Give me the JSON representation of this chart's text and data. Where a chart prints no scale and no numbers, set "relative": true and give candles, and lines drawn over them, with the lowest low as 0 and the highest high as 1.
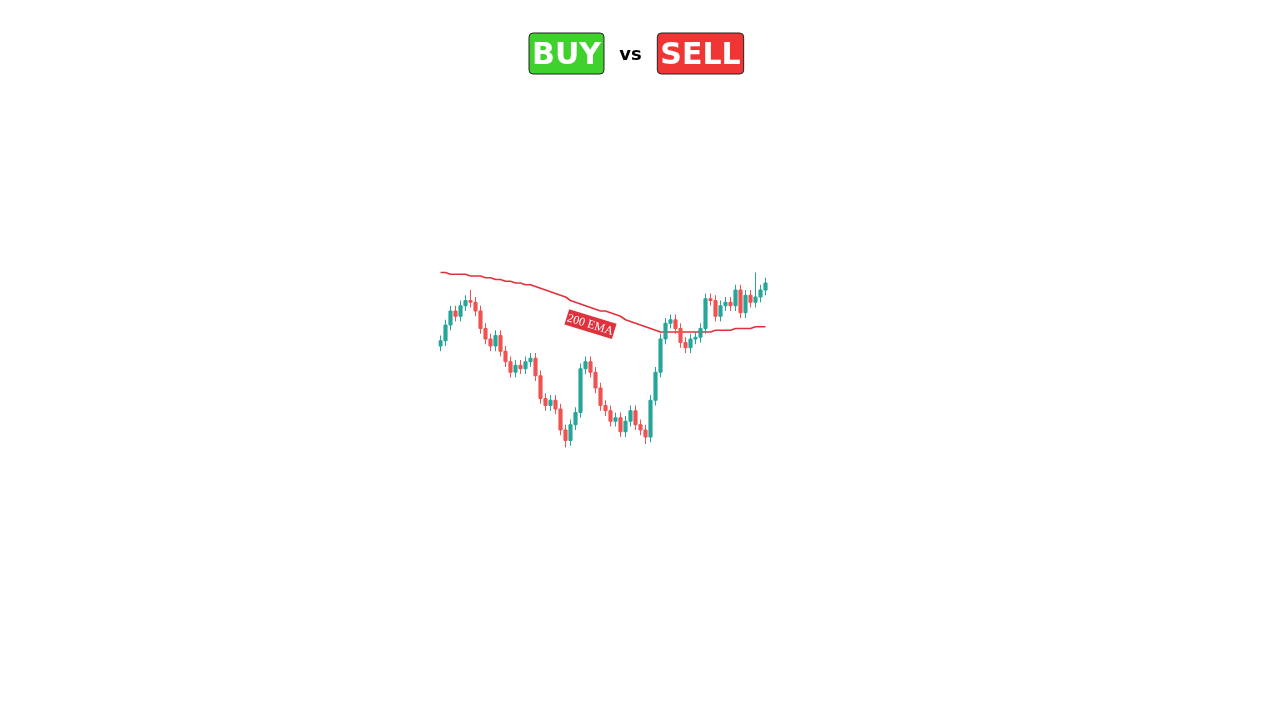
{
  "chart_data": {
    "type": "candlestick",
    "title": "BUY vs SELL",
    "relative": true,
    "categories": [
      null,
      null,
      null,
      null,
      null,
      null,
      null,
      null,
      null,
      null,
      null,
      null,
      null,
      null,
      null,
      null,
      null,
      null,
      null,
      null,
      null,
      null,
      null,
      null,
      null,
      null,
      null,
      null,
      null,
      null,
      null,
      null,
      null,
      null,
      null,
      null,
      null,
      null,
      null,
      null,
      null,
      null,
      null,
      null,
      null,
      null,
      null,
      null,
      null,
      null,
      null,
      null,
      null,
      null,
      null,
      null,
      null,
      null,
      null,
      null,
      null,
      null,
      null,
      null,
      null,
      null
    ],
    "ohlc": [
      [
        0.58,
        0.64,
        0.55,
        0.61
      ],
      [
        0.61,
        0.73,
        0.58,
        0.7
      ],
      [
        0.7,
        0.81,
        0.67,
        0.78
      ],
      [
        0.78,
        0.81,
        0.72,
        0.75
      ],
      [
        0.75,
        0.84,
        0.72,
        0.81
      ],
      [
        0.81,
        0.87,
        0.78,
        0.84
      ],
      [
        0.84,
        0.9,
        0.8,
        0.83
      ],
      [
        0.83,
        0.86,
        0.75,
        0.78
      ],
      [
        0.78,
        0.81,
        0.65,
        0.68
      ],
      [
        0.68,
        0.71,
        0.59,
        0.62
      ],
      [
        0.62,
        0.65,
        0.55,
        0.58
      ],
      [
        0.58,
        0.67,
        0.55,
        0.64
      ],
      [
        0.64,
        0.67,
        0.52,
        0.55
      ],
      [
        0.55,
        0.58,
        0.46,
        0.49
      ],
      [
        0.49,
        0.52,
        0.4,
        0.43
      ],
      [
        0.43,
        0.5,
        0.4,
        0.47
      ],
      [
        0.47,
        0.5,
        0.42,
        0.45
      ],
      [
        0.45,
        0.52,
        0.42,
        0.49
      ],
      [
        0.49,
        0.54,
        0.46,
        0.51
      ],
      [
        0.51,
        0.54,
        0.38,
        0.41
      ],
      [
        0.41,
        0.44,
        0.25,
        0.28
      ],
      [
        0.28,
        0.31,
        0.21,
        0.24
      ],
      [
        0.24,
        0.3,
        0.21,
        0.27
      ],
      [
        0.27,
        0.3,
        0.19,
        0.22
      ],
      [
        0.22,
        0.25,
        0.07,
        0.1
      ],
      [
        0.1,
        0.13,
        0.0,
        0.04
      ],
      [
        0.04,
        0.16,
        0.01,
        0.13
      ],
      [
        0.13,
        0.23,
        0.1,
        0.2
      ],
      [
        0.2,
        0.48,
        0.17,
        0.45
      ],
      [
        0.45,
        0.52,
        0.42,
        0.49
      ],
      [
        0.49,
        0.52,
        0.4,
        0.43
      ],
      [
        0.43,
        0.46,
        0.31,
        0.34
      ],
      [
        0.34,
        0.37,
        0.21,
        0.24
      ],
      [
        0.24,
        0.27,
        0.18,
        0.21
      ],
      [
        0.21,
        0.24,
        0.12,
        0.15
      ],
      [
        0.15,
        0.2,
        0.12,
        0.17
      ],
      [
        0.17,
        0.2,
        0.06,
        0.09
      ],
      [
        0.09,
        0.18,
        0.06,
        0.15
      ],
      [
        0.15,
        0.24,
        0.12,
        0.21
      ],
      [
        0.21,
        0.24,
        0.1,
        0.13
      ],
      [
        0.13,
        0.16,
        0.07,
        0.1
      ],
      [
        0.1,
        0.13,
        0.02,
        0.06
      ],
      [
        0.06,
        0.3,
        0.03,
        0.27
      ],
      [
        0.27,
        0.46,
        0.24,
        0.43
      ],
      [
        0.43,
        0.65,
        0.4,
        0.62
      ],
      [
        0.62,
        0.74,
        0.59,
        0.71
      ],
      [
        0.71,
        0.76,
        0.68,
        0.73
      ],
      [
        0.73,
        0.76,
        0.65,
        0.68
      ],
      [
        0.68,
        0.71,
        0.57,
        0.6
      ],
      [
        0.6,
        0.63,
        0.54,
        0.57
      ],
      [
        0.57,
        0.65,
        0.54,
        0.62
      ],
      [
        0.62,
        0.66,
        0.59,
        0.63
      ],
      [
        0.63,
        0.71,
        0.6,
        0.68
      ],
      [
        0.68,
        0.88,
        0.65,
        0.85
      ],
      [
        0.85,
        0.88,
        0.81,
        0.84
      ],
      [
        0.84,
        0.87,
        0.72,
        0.75
      ],
      [
        0.75,
        0.84,
        0.72,
        0.81
      ],
      [
        0.81,
        0.86,
        0.78,
        0.83
      ],
      [
        0.83,
        0.86,
        0.78,
        0.81
      ],
      [
        0.81,
        0.93,
        0.78,
        0.9
      ],
      [
        0.9,
        0.93,
        0.74,
        0.77
      ],
      [
        0.77,
        0.9,
        0.74,
        0.87
      ],
      [
        0.87,
        0.9,
        0.8,
        0.83
      ],
      [
        0.83,
        1.0,
        0.8,
        0.86
      ],
      [
        0.86,
        0.93,
        0.83,
        0.9
      ],
      [
        0.9,
        0.97,
        0.87,
        0.94
      ]
    ],
    "series": [
      {
        "type": "line",
        "name": "200 EMA",
        "color": "#e0323c",
        "values": [
          1.0,
          1.0,
          0.99,
          0.99,
          0.99,
          0.99,
          0.98,
          0.98,
          0.98,
          0.97,
          0.97,
          0.96,
          0.96,
          0.95,
          0.95,
          0.94,
          0.94,
          0.93,
          0.93,
          0.92,
          0.91,
          0.9,
          0.89,
          0.88,
          0.87,
          0.86,
          0.84,
          0.83,
          0.82,
          0.81,
          0.8,
          0.79,
          0.78,
          0.78,
          0.77,
          0.76,
          0.75,
          0.73,
          0.72,
          0.71,
          0.7,
          0.69,
          0.68,
          0.67,
          0.66,
          0.66,
          0.66,
          0.66,
          0.66,
          0.66,
          0.66,
          0.66,
          0.66,
          0.66,
          0.66,
          0.67,
          0.67,
          0.67,
          0.67,
          0.68,
          0.68,
          0.68,
          0.68,
          0.69,
          0.69,
          0.69
        ]
      }
    ]
  }
}
